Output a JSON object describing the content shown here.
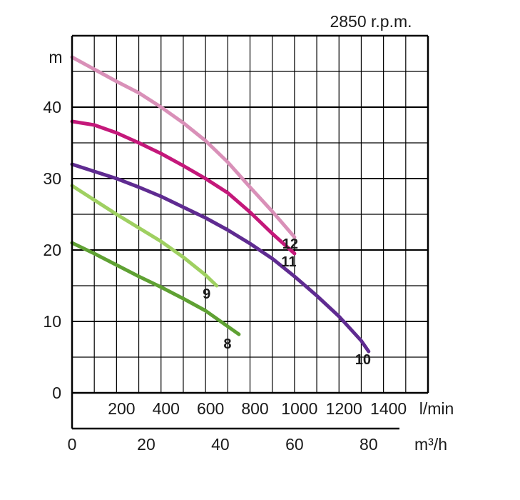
{
  "chart_data": {
    "type": "line",
    "title": "2850 r.p.m.",
    "ylabel": "m",
    "x_unit_primary": "m³/h",
    "x_unit_secondary": "l/min",
    "ylim": [
      0,
      50
    ],
    "xlim": [
      0,
      96
    ],
    "grid": true,
    "y_ticks": [
      "0",
      "10",
      "20",
      "30",
      "40"
    ],
    "x_ticks_primary": [
      "0",
      "20",
      "40",
      "60",
      "80"
    ],
    "x_ticks_secondary": [
      "200",
      "400",
      "600",
      "800",
      "1000",
      "1200",
      "1400"
    ],
    "series": [
      {
        "name": "12",
        "color": "#d990b8",
        "points": [
          [
            0,
            47
          ],
          [
            6,
            45.3
          ],
          [
            12,
            43.6
          ],
          [
            18,
            42
          ],
          [
            24,
            40
          ],
          [
            30,
            37.8
          ],
          [
            36,
            35.3
          ],
          [
            42,
            32.3
          ],
          [
            48,
            28.8
          ],
          [
            54,
            25.4
          ],
          [
            60,
            21.8
          ]
        ]
      },
      {
        "name": "11",
        "color": "#c4187a",
        "points": [
          [
            0,
            38
          ],
          [
            6,
            37.5
          ],
          [
            12,
            36.4
          ],
          [
            18,
            35
          ],
          [
            24,
            33.5
          ],
          [
            30,
            31.8
          ],
          [
            36,
            30
          ],
          [
            42,
            28
          ],
          [
            48,
            25.3
          ],
          [
            54,
            22.3
          ],
          [
            60,
            19.5
          ]
        ]
      },
      {
        "name": "10",
        "color": "#5f2b91",
        "points": [
          [
            0,
            32
          ],
          [
            6,
            31
          ],
          [
            12,
            30
          ],
          [
            18,
            28.8
          ],
          [
            24,
            27.5
          ],
          [
            30,
            26
          ],
          [
            36,
            24.5
          ],
          [
            42,
            22.8
          ],
          [
            48,
            20.9
          ],
          [
            54,
            18.8
          ],
          [
            60,
            16.3
          ],
          [
            66,
            13.6
          ],
          [
            72,
            10.7
          ],
          [
            78,
            7.3
          ],
          [
            80,
            5.8
          ]
        ]
      },
      {
        "name": "9",
        "color": "#9fd061",
        "points": [
          [
            0,
            29
          ],
          [
            6,
            27
          ],
          [
            12,
            25
          ],
          [
            18,
            23.1
          ],
          [
            24,
            21.2
          ],
          [
            30,
            19
          ],
          [
            36,
            16.5
          ],
          [
            39,
            15
          ]
        ]
      },
      {
        "name": "8",
        "color": "#5fa133",
        "points": [
          [
            0,
            21
          ],
          [
            6,
            19.5
          ],
          [
            12,
            17.9
          ],
          [
            18,
            16.3
          ],
          [
            24,
            14.8
          ],
          [
            30,
            13.2
          ],
          [
            36,
            11.5
          ],
          [
            42,
            9.3
          ],
          [
            45,
            8.2
          ]
        ]
      }
    ]
  }
}
